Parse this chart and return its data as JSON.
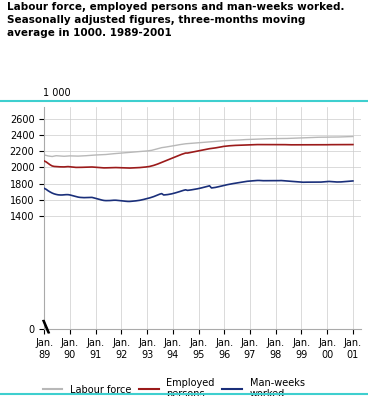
{
  "title_line1": "Labour force, employed persons and man-weeks worked.",
  "title_line2": "Seasonally adjusted figures, three-months moving",
  "title_line3": "average in 1000. 1989-2001",
  "ylabel_unit": "1 000",
  "yticks": [
    0,
    1400,
    1600,
    1800,
    2000,
    2200,
    2400,
    2600
  ],
  "ylim": [
    0,
    2750
  ],
  "xtick_labels": [
    "Jan.\n89",
    "Jan.\n90",
    "Jan.\n91",
    "Jan.\n92",
    "Jan.\n93",
    "Jan.\n94",
    "Jan.\n95",
    "Jan.\n96",
    "Jan.\n97",
    "Jan.\n98",
    "Jan.\n99",
    "Jan.\n00",
    "Jan.\n01"
  ],
  "labour_force_color": "#b8b8b8",
  "employed_color": "#9b1a1a",
  "manweeks_color": "#1a2f7a",
  "legend_labels": [
    "Labour force",
    "Employed\npersons",
    "Man-weeks\nworked"
  ],
  "labour_force": [
    2155,
    2148,
    2142,
    2138,
    2135,
    2140,
    2145,
    2143,
    2142,
    2140,
    2138,
    2140,
    2142,
    2143,
    2142,
    2140,
    2140,
    2140,
    2141,
    2142,
    2143,
    2145,
    2147,
    2148,
    2150,
    2152,
    2154,
    2155,
    2155,
    2156,
    2158,
    2160,
    2162,
    2165,
    2168,
    2170,
    2172,
    2174,
    2176,
    2178,
    2180,
    2182,
    2184,
    2186,
    2188,
    2190,
    2192,
    2194,
    2196,
    2198,
    2200,
    2202,
    2205,
    2208,
    2212,
    2218,
    2225,
    2232,
    2240,
    2245,
    2248,
    2252,
    2256,
    2260,
    2264,
    2268,
    2273,
    2278,
    2282,
    2286,
    2290,
    2293,
    2295,
    2298,
    2300,
    2302,
    2304,
    2306,
    2308,
    2310,
    2312,
    2314,
    2316,
    2318,
    2318,
    2320,
    2322,
    2324,
    2326,
    2328,
    2330,
    2332,
    2333,
    2334,
    2335,
    2336,
    2337,
    2338,
    2340,
    2342,
    2344,
    2345,
    2346,
    2347,
    2348,
    2349,
    2350,
    2351,
    2352,
    2353,
    2354,
    2355,
    2355,
    2356,
    2356,
    2357,
    2357,
    2358,
    2358,
    2358,
    2358,
    2358,
    2359,
    2360,
    2360,
    2361,
    2362,
    2363,
    2364,
    2365,
    2366,
    2367,
    2368,
    2369,
    2370,
    2371,
    2372,
    2373,
    2374,
    2374,
    2374,
    2375,
    2375,
    2376,
    2376,
    2376,
    2376,
    2377,
    2377,
    2378,
    2378,
    2379,
    2380,
    2381,
    2382,
    2383
  ],
  "employed": [
    2080,
    2068,
    2050,
    2032,
    2018,
    2012,
    2010,
    2008,
    2007,
    2006,
    2006,
    2008,
    2010,
    2008,
    2005,
    2002,
    2000,
    2000,
    2000,
    2001,
    2002,
    2004,
    2005,
    2006,
    2005,
    2003,
    2001,
    1998,
    1996,
    1995,
    1994,
    1994,
    1995,
    1996,
    1997,
    1998,
    1998,
    1997,
    1996,
    1995,
    1994,
    1993,
    1992,
    1992,
    1993,
    1994,
    1995,
    1996,
    1998,
    2000,
    2002,
    2005,
    2008,
    2012,
    2018,
    2025,
    2033,
    2042,
    2052,
    2062,
    2072,
    2082,
    2092,
    2102,
    2112,
    2122,
    2133,
    2143,
    2152,
    2162,
    2170,
    2178,
    2178,
    2183,
    2188,
    2193,
    2198,
    2203,
    2208,
    2213,
    2218,
    2223,
    2228,
    2232,
    2235,
    2238,
    2242,
    2246,
    2250,
    2255,
    2260,
    2263,
    2265,
    2268,
    2270,
    2272,
    2273,
    2274,
    2275,
    2276,
    2277,
    2278,
    2279,
    2280,
    2280,
    2281,
    2282,
    2283,
    2283,
    2283,
    2283,
    2284,
    2284,
    2284,
    2284,
    2284,
    2284,
    2284,
    2284,
    2284,
    2283,
    2282,
    2281,
    2280,
    2280,
    2280,
    2280,
    2280,
    2280,
    2280,
    2280,
    2280,
    2280,
    2280,
    2281,
    2281,
    2281,
    2281,
    2281,
    2281,
    2281,
    2281,
    2281,
    2282,
    2282,
    2282,
    2282,
    2282,
    2282,
    2282,
    2282,
    2282,
    2282,
    2282,
    2282,
    2283
  ],
  "manweeks": [
    1740,
    1728,
    1710,
    1695,
    1682,
    1672,
    1665,
    1660,
    1658,
    1658,
    1660,
    1662,
    1662,
    1658,
    1652,
    1645,
    1638,
    1632,
    1628,
    1626,
    1625,
    1626,
    1627,
    1628,
    1628,
    1622,
    1615,
    1608,
    1601,
    1595,
    1590,
    1588,
    1588,
    1589,
    1591,
    1593,
    1593,
    1591,
    1588,
    1585,
    1582,
    1580,
    1578,
    1578,
    1580,
    1582,
    1585,
    1588,
    1592,
    1597,
    1603,
    1610,
    1616,
    1622,
    1630,
    1638,
    1648,
    1658,
    1668,
    1675,
    1658,
    1660,
    1663,
    1667,
    1672,
    1678,
    1685,
    1692,
    1700,
    1708,
    1716,
    1722,
    1715,
    1718,
    1722,
    1726,
    1730,
    1735,
    1740,
    1746,
    1752,
    1758,
    1765,
    1772,
    1745,
    1748,
    1752,
    1757,
    1763,
    1769,
    1775,
    1780,
    1786,
    1791,
    1796,
    1800,
    1804,
    1808,
    1812,
    1816,
    1820,
    1824,
    1828,
    1830,
    1832,
    1834,
    1836,
    1838,
    1838,
    1836,
    1835,
    1835,
    1835,
    1835,
    1835,
    1835,
    1835,
    1835,
    1836,
    1837,
    1835,
    1833,
    1831,
    1829,
    1827,
    1825,
    1823,
    1820,
    1818,
    1816,
    1816,
    1817,
    1817,
    1817,
    1817,
    1817,
    1817,
    1817,
    1817,
    1818,
    1820,
    1822,
    1824,
    1826,
    1824,
    1822,
    1820,
    1819,
    1819,
    1820,
    1822,
    1824,
    1826,
    1828,
    1830,
    1832
  ]
}
